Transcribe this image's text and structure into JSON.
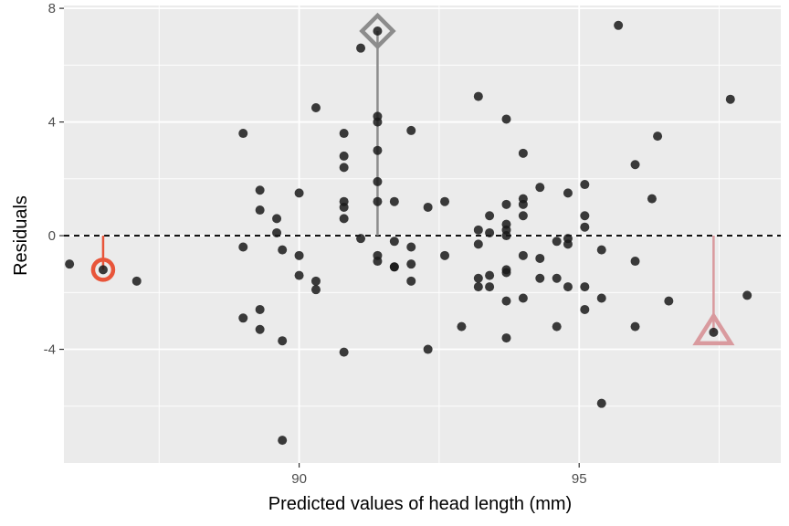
{
  "chart_data": {
    "type": "scatter",
    "xlabel": "Predicted values of head length (mm)",
    "ylabel": "Residuals",
    "xlim": [
      85.8,
      98.6
    ],
    "ylim": [
      -8.0,
      8.1
    ],
    "x_ticks": [
      90,
      95
    ],
    "x_tick_labels": [
      "90",
      "95"
    ],
    "y_ticks": [
      -4,
      0,
      4,
      8
    ],
    "y_tick_labels": [
      "-4",
      "0",
      "4",
      "8"
    ],
    "reference_line": {
      "y": 0,
      "style": "dashed"
    },
    "grid": true,
    "colors": {
      "panel": "#ebebeb",
      "grid": "#ffffff",
      "points": "#1a1a1a",
      "circle_marker": "#e8553a",
      "diamond_marker": "#8c8c8c",
      "triangle_marker": "#d99a9e"
    },
    "points": [
      [
        85.9,
        -1.0
      ],
      [
        86.5,
        -1.2
      ],
      [
        87.1,
        -1.6
      ],
      [
        89.0,
        3.6
      ],
      [
        89.0,
        -0.4
      ],
      [
        89.0,
        -2.9
      ],
      [
        89.3,
        1.6
      ],
      [
        89.3,
        0.9
      ],
      [
        89.3,
        -2.6
      ],
      [
        89.3,
        -3.3
      ],
      [
        89.6,
        0.6
      ],
      [
        89.6,
        0.1
      ],
      [
        89.7,
        -0.5
      ],
      [
        89.7,
        -3.7
      ],
      [
        89.7,
        -7.2
      ],
      [
        90.0,
        1.5
      ],
      [
        90.0,
        -0.7
      ],
      [
        90.0,
        -1.4
      ],
      [
        90.3,
        4.5
      ],
      [
        90.3,
        -1.6
      ],
      [
        90.3,
        -1.9
      ],
      [
        90.8,
        3.6
      ],
      [
        90.8,
        2.8
      ],
      [
        90.8,
        2.4
      ],
      [
        90.8,
        1.2
      ],
      [
        90.8,
        1.0
      ],
      [
        90.8,
        0.6
      ],
      [
        90.8,
        -4.1
      ],
      [
        91.1,
        6.6
      ],
      [
        91.1,
        -0.1
      ],
      [
        91.4,
        7.2
      ],
      [
        91.4,
        4.2
      ],
      [
        91.4,
        4.0
      ],
      [
        91.4,
        3.0
      ],
      [
        91.4,
        1.9
      ],
      [
        91.4,
        1.2
      ],
      [
        91.4,
        -0.7
      ],
      [
        91.4,
        -0.9
      ],
      [
        91.7,
        1.2
      ],
      [
        91.7,
        -0.2
      ],
      [
        91.7,
        -1.1
      ],
      [
        91.7,
        -1.1
      ],
      [
        92.0,
        3.7
      ],
      [
        92.0,
        -0.4
      ],
      [
        92.0,
        -1.0
      ],
      [
        92.0,
        -1.6
      ],
      [
        92.3,
        1.0
      ],
      [
        92.3,
        -4.0
      ],
      [
        92.6,
        1.2
      ],
      [
        92.6,
        -0.7
      ],
      [
        92.9,
        -3.2
      ],
      [
        93.2,
        4.9
      ],
      [
        93.2,
        0.2
      ],
      [
        93.2,
        -0.3
      ],
      [
        93.2,
        -1.5
      ],
      [
        93.2,
        -1.8
      ],
      [
        93.4,
        0.7
      ],
      [
        93.4,
        0.1
      ],
      [
        93.4,
        -1.4
      ],
      [
        93.4,
        -1.8
      ],
      [
        93.7,
        4.1
      ],
      [
        93.7,
        1.1
      ],
      [
        93.7,
        0.4
      ],
      [
        93.7,
        0.2
      ],
      [
        93.7,
        0.0
      ],
      [
        93.7,
        -1.2
      ],
      [
        93.7,
        -1.3
      ],
      [
        93.7,
        -2.3
      ],
      [
        93.7,
        -3.6
      ],
      [
        94.0,
        2.9
      ],
      [
        94.0,
        1.3
      ],
      [
        94.0,
        1.1
      ],
      [
        94.0,
        0.7
      ],
      [
        94.0,
        -0.7
      ],
      [
        94.0,
        -2.2
      ],
      [
        94.3,
        1.7
      ],
      [
        94.3,
        -0.8
      ],
      [
        94.3,
        -1.5
      ],
      [
        94.6,
        -0.2
      ],
      [
        94.6,
        -1.5
      ],
      [
        94.6,
        -3.2
      ],
      [
        94.8,
        1.5
      ],
      [
        94.8,
        -0.1
      ],
      [
        94.8,
        -0.3
      ],
      [
        94.8,
        -1.8
      ],
      [
        95.1,
        1.8
      ],
      [
        95.1,
        0.7
      ],
      [
        95.1,
        0.3
      ],
      [
        95.1,
        -1.8
      ],
      [
        95.1,
        -2.6
      ],
      [
        95.4,
        -0.5
      ],
      [
        95.4,
        -2.2
      ],
      [
        95.4,
        -5.9
      ],
      [
        95.7,
        7.4
      ],
      [
        96.0,
        2.5
      ],
      [
        96.0,
        -0.9
      ],
      [
        96.0,
        -3.2
      ],
      [
        96.3,
        1.3
      ],
      [
        96.4,
        3.5
      ],
      [
        96.6,
        -2.3
      ],
      [
        97.4,
        -3.4
      ],
      [
        97.7,
        4.8
      ],
      [
        98.0,
        -2.1
      ]
    ],
    "highlights": [
      {
        "shape": "circle",
        "x": 86.5,
        "y": -1.2
      },
      {
        "shape": "diamond",
        "x": 91.4,
        "y": 7.2
      },
      {
        "shape": "triangle",
        "x": 97.4,
        "y": -3.4
      }
    ]
  }
}
